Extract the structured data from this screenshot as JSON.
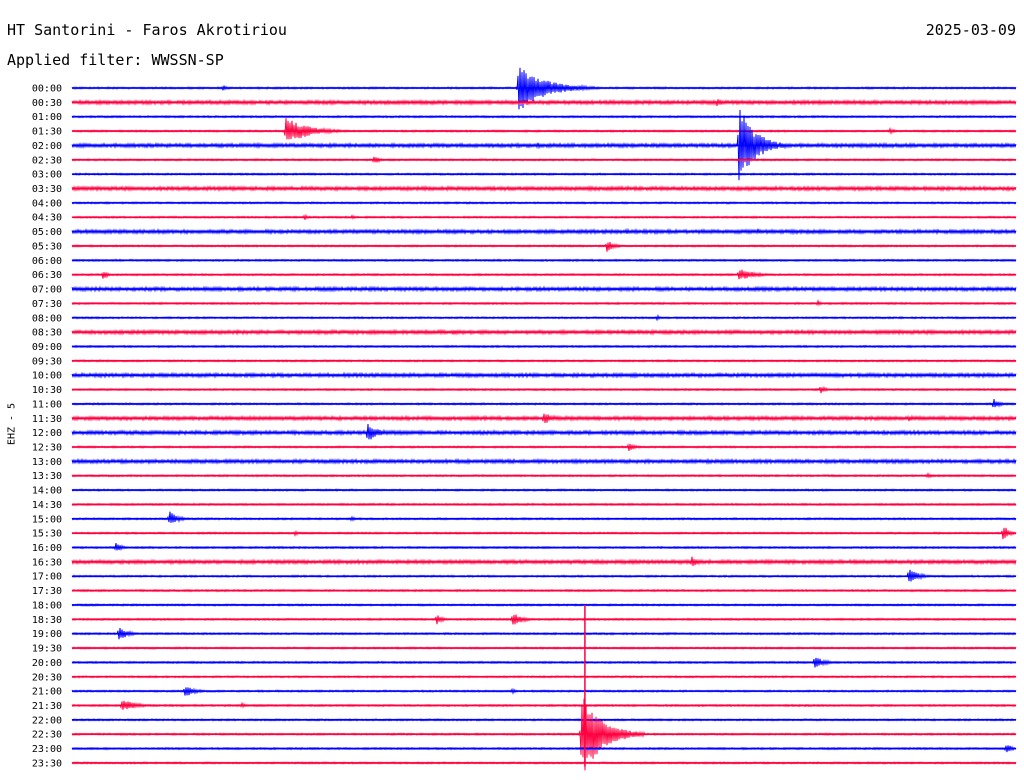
{
  "header": {
    "station": "HT Santorini - Faros Akrotiriou",
    "date": "2025-03-09",
    "filter": "Applied filter: WWSSN-SP",
    "channel": "EHZ - 5"
  },
  "chart_data": {
    "type": "line",
    "title": "HT Santorini - Faros Akrotiriou",
    "ylabel": "EHZ - 5",
    "colors": {
      "blue": "#0000ff",
      "red": "#ff0040"
    },
    "row_labels": [
      "00:00",
      "00:30",
      "01:00",
      "01:30",
      "02:00",
      "02:30",
      "03:00",
      "03:30",
      "04:00",
      "04:30",
      "05:00",
      "05:30",
      "06:00",
      "06:30",
      "07:00",
      "07:30",
      "08:00",
      "08:30",
      "09:00",
      "09:30",
      "10:00",
      "10:30",
      "11:00",
      "11:30",
      "12:00",
      "12:30",
      "13:00",
      "13:30",
      "14:00",
      "14:30",
      "15:00",
      "15:30",
      "16:00",
      "16:30",
      "17:00",
      "17:30",
      "18:00",
      "18:30",
      "19:00",
      "19:30",
      "20:00",
      "20:30",
      "21:00",
      "21:30",
      "22:00",
      "22:30",
      "23:00",
      "23:30"
    ],
    "minutes_per_row": 30,
    "series_color_pattern": [
      "blue",
      "red"
    ],
    "row_noise": [
      1,
      2,
      1,
      1,
      2,
      1,
      1,
      2,
      1,
      1,
      2,
      1,
      1,
      1,
      2,
      1,
      1,
      2,
      1,
      1,
      2,
      1,
      1,
      2,
      2,
      1,
      2,
      1,
      1,
      1,
      1,
      1,
      1,
      2,
      1,
      1,
      1,
      1,
      1,
      1,
      1,
      1,
      1,
      1,
      1,
      1,
      1,
      1
    ],
    "events": [
      {
        "row": 0,
        "minute": 14.2,
        "amplitude": 24,
        "duration_min": 2.6
      },
      {
        "row": 0,
        "minute": 4.8,
        "amplitude": 3,
        "duration_min": 0.6
      },
      {
        "row": 1,
        "minute": 20.5,
        "amplitude": 5,
        "duration_min": 0.5
      },
      {
        "row": 3,
        "minute": 6.8,
        "amplitude": 14,
        "duration_min": 2.2
      },
      {
        "row": 3,
        "minute": 26.0,
        "amplitude": 3,
        "duration_min": 0.5
      },
      {
        "row": 4,
        "minute": 21.2,
        "amplitude": 40,
        "duration_min": 1.6
      },
      {
        "row": 4,
        "minute": 14.8,
        "amplitude": 3,
        "duration_min": 0.7
      },
      {
        "row": 5,
        "minute": 9.6,
        "amplitude": 5,
        "duration_min": 0.5
      },
      {
        "row": 9,
        "minute": 7.4,
        "amplitude": 3,
        "duration_min": 0.3
      },
      {
        "row": 9,
        "minute": 8.9,
        "amplitude": 3,
        "duration_min": 0.3
      },
      {
        "row": 10,
        "minute": 17.6,
        "amplitude": 3,
        "duration_min": 0.5
      },
      {
        "row": 10,
        "minute": 21.8,
        "amplitude": 3,
        "duration_min": 0.5
      },
      {
        "row": 11,
        "minute": 17.0,
        "amplitude": 6,
        "duration_min": 0.8
      },
      {
        "row": 13,
        "minute": 1.0,
        "amplitude": 5,
        "duration_min": 0.4
      },
      {
        "row": 13,
        "minute": 21.2,
        "amplitude": 6,
        "duration_min": 1.6
      },
      {
        "row": 15,
        "minute": 23.7,
        "amplitude": 3,
        "duration_min": 0.4
      },
      {
        "row": 16,
        "minute": 18.6,
        "amplitude": 3,
        "duration_min": 0.3
      },
      {
        "row": 17,
        "minute": 12.1,
        "amplitude": 3,
        "duration_min": 1.0
      },
      {
        "row": 21,
        "minute": 23.8,
        "amplitude": 5,
        "duration_min": 0.4
      },
      {
        "row": 22,
        "minute": 29.3,
        "amplitude": 6,
        "duration_min": 0.6
      },
      {
        "row": 23,
        "minute": 15.0,
        "amplitude": 6,
        "duration_min": 1.0
      },
      {
        "row": 23,
        "minute": 26.6,
        "amplitude": 3,
        "duration_min": 0.8
      },
      {
        "row": 24,
        "minute": 9.4,
        "amplitude": 9,
        "duration_min": 1.2
      },
      {
        "row": 25,
        "minute": 17.7,
        "amplitude": 4,
        "duration_min": 0.7
      },
      {
        "row": 27,
        "minute": 27.2,
        "amplitude": 3,
        "duration_min": 0.4
      },
      {
        "row": 30,
        "minute": 3.1,
        "amplitude": 8,
        "duration_min": 0.8
      },
      {
        "row": 30,
        "minute": 8.9,
        "amplitude": 3,
        "duration_min": 0.4
      },
      {
        "row": 31,
        "minute": 29.6,
        "amplitude": 10,
        "duration_min": 0.5
      },
      {
        "row": 31,
        "minute": 7.1,
        "amplitude": 3,
        "duration_min": 0.3
      },
      {
        "row": 32,
        "minute": 1.4,
        "amplitude": 5,
        "duration_min": 0.6
      },
      {
        "row": 33,
        "minute": 19.7,
        "amplitude": 6,
        "duration_min": 0.7
      },
      {
        "row": 34,
        "minute": 26.6,
        "amplitude": 8,
        "duration_min": 1.0
      },
      {
        "row": 37,
        "minute": 11.6,
        "amplitude": 6,
        "duration_min": 0.5
      },
      {
        "row": 37,
        "minute": 14.0,
        "amplitude": 7,
        "duration_min": 1.0
      },
      {
        "row": 38,
        "minute": 1.5,
        "amplitude": 8,
        "duration_min": 0.8
      },
      {
        "row": 40,
        "minute": 23.6,
        "amplitude": 7,
        "duration_min": 0.9
      },
      {
        "row": 42,
        "minute": 3.6,
        "amplitude": 7,
        "duration_min": 0.9
      },
      {
        "row": 42,
        "minute": 14.0,
        "amplitude": 3,
        "duration_min": 0.3
      },
      {
        "row": 43,
        "minute": 1.6,
        "amplitude": 6,
        "duration_min": 1.4
      },
      {
        "row": 43,
        "minute": 5.4,
        "amplitude": 3,
        "duration_min": 0.4
      },
      {
        "row": 45,
        "minute": 16.2,
        "amplitude": 44,
        "duration_min": 2.0
      },
      {
        "row": 46,
        "minute": 29.7,
        "amplitude": 7,
        "duration_min": 0.4
      }
    ],
    "spike": {
      "row": 37,
      "minute": 16.3,
      "top_row_offset": -1,
      "bottom_row": 46
    }
  }
}
